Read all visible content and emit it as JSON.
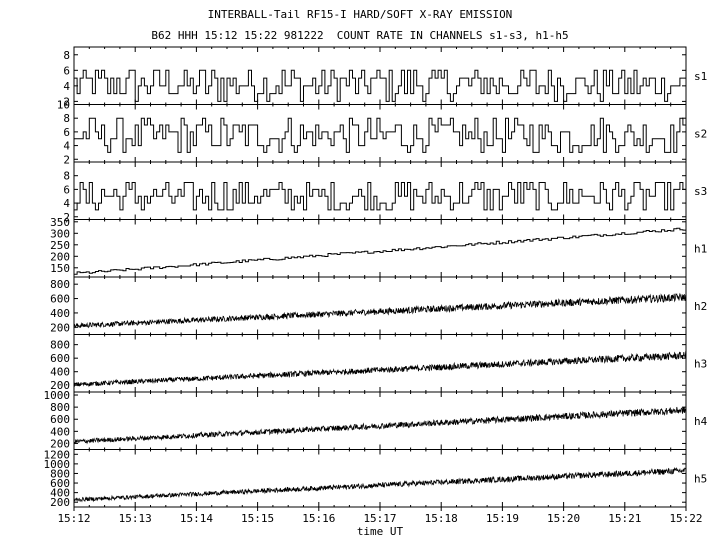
{
  "title": "INTERBALL-Tail RF15-I HARD/SOFT X-RAY EMISSION",
  "subtitle": "B62 HHH 15:12 15:22 981222  COUNT RATE IN CHANNELS s1-s3, h1-h5",
  "chart_data": [
    {
      "type": "line",
      "name": "s1",
      "ylim": [
        1.6,
        9
      ],
      "yticks": [
        "2",
        "4",
        "6",
        "8"
      ],
      "trend": [
        4.2,
        4.2
      ],
      "noise": 2.2,
      "step": true
    },
    {
      "type": "line",
      "name": "s2",
      "ylim": [
        1.6,
        10
      ],
      "yticks": [
        "2",
        "4",
        "6",
        "8",
        "10"
      ],
      "trend": [
        5.5,
        5.5
      ],
      "noise": 2.5,
      "step": true
    },
    {
      "type": "line",
      "name": "s3",
      "ylim": [
        1.6,
        10
      ],
      "yticks": [
        "2",
        "4",
        "6",
        "8"
      ],
      "trend": [
        5,
        5
      ],
      "noise": 2.3,
      "step": true
    },
    {
      "type": "line",
      "name": "h1",
      "ylim": [
        110,
        360
      ],
      "yticks": [
        "150",
        "200",
        "250",
        "300",
        "350"
      ],
      "trend": [
        125,
        320
      ],
      "noise": 6,
      "step": true
    },
    {
      "type": "line",
      "name": "h2",
      "ylim": [
        100,
        900
      ],
      "yticks": [
        "200",
        "400",
        "600",
        "800"
      ],
      "trend": [
        220,
        620
      ],
      "noise": 55,
      "step": false
    },
    {
      "type": "line",
      "name": "h3",
      "ylim": [
        100,
        950
      ],
      "yticks": [
        "200",
        "400",
        "600",
        "800"
      ],
      "trend": [
        210,
        640
      ],
      "noise": 55,
      "step": false
    },
    {
      "type": "line",
      "name": "h4",
      "ylim": [
        100,
        1050
      ],
      "yticks": [
        "200",
        "400",
        "600",
        "800",
        "1000"
      ],
      "trend": [
        230,
        750
      ],
      "noise": 60,
      "step": false
    },
    {
      "type": "line",
      "name": "h5",
      "ylim": [
        100,
        1300
      ],
      "yticks": [
        "200",
        "400",
        "600",
        "800",
        "1000",
        "1200"
      ],
      "trend": [
        250,
        860
      ],
      "noise": 65,
      "step": false
    }
  ],
  "x_ticks": [
    "15:12",
    "15:13",
    "15:14",
    "15:15",
    "15:16",
    "15:17",
    "15:18",
    "15:19",
    "15:20",
    "15:21",
    "15:22"
  ],
  "xlabel": "time UT"
}
